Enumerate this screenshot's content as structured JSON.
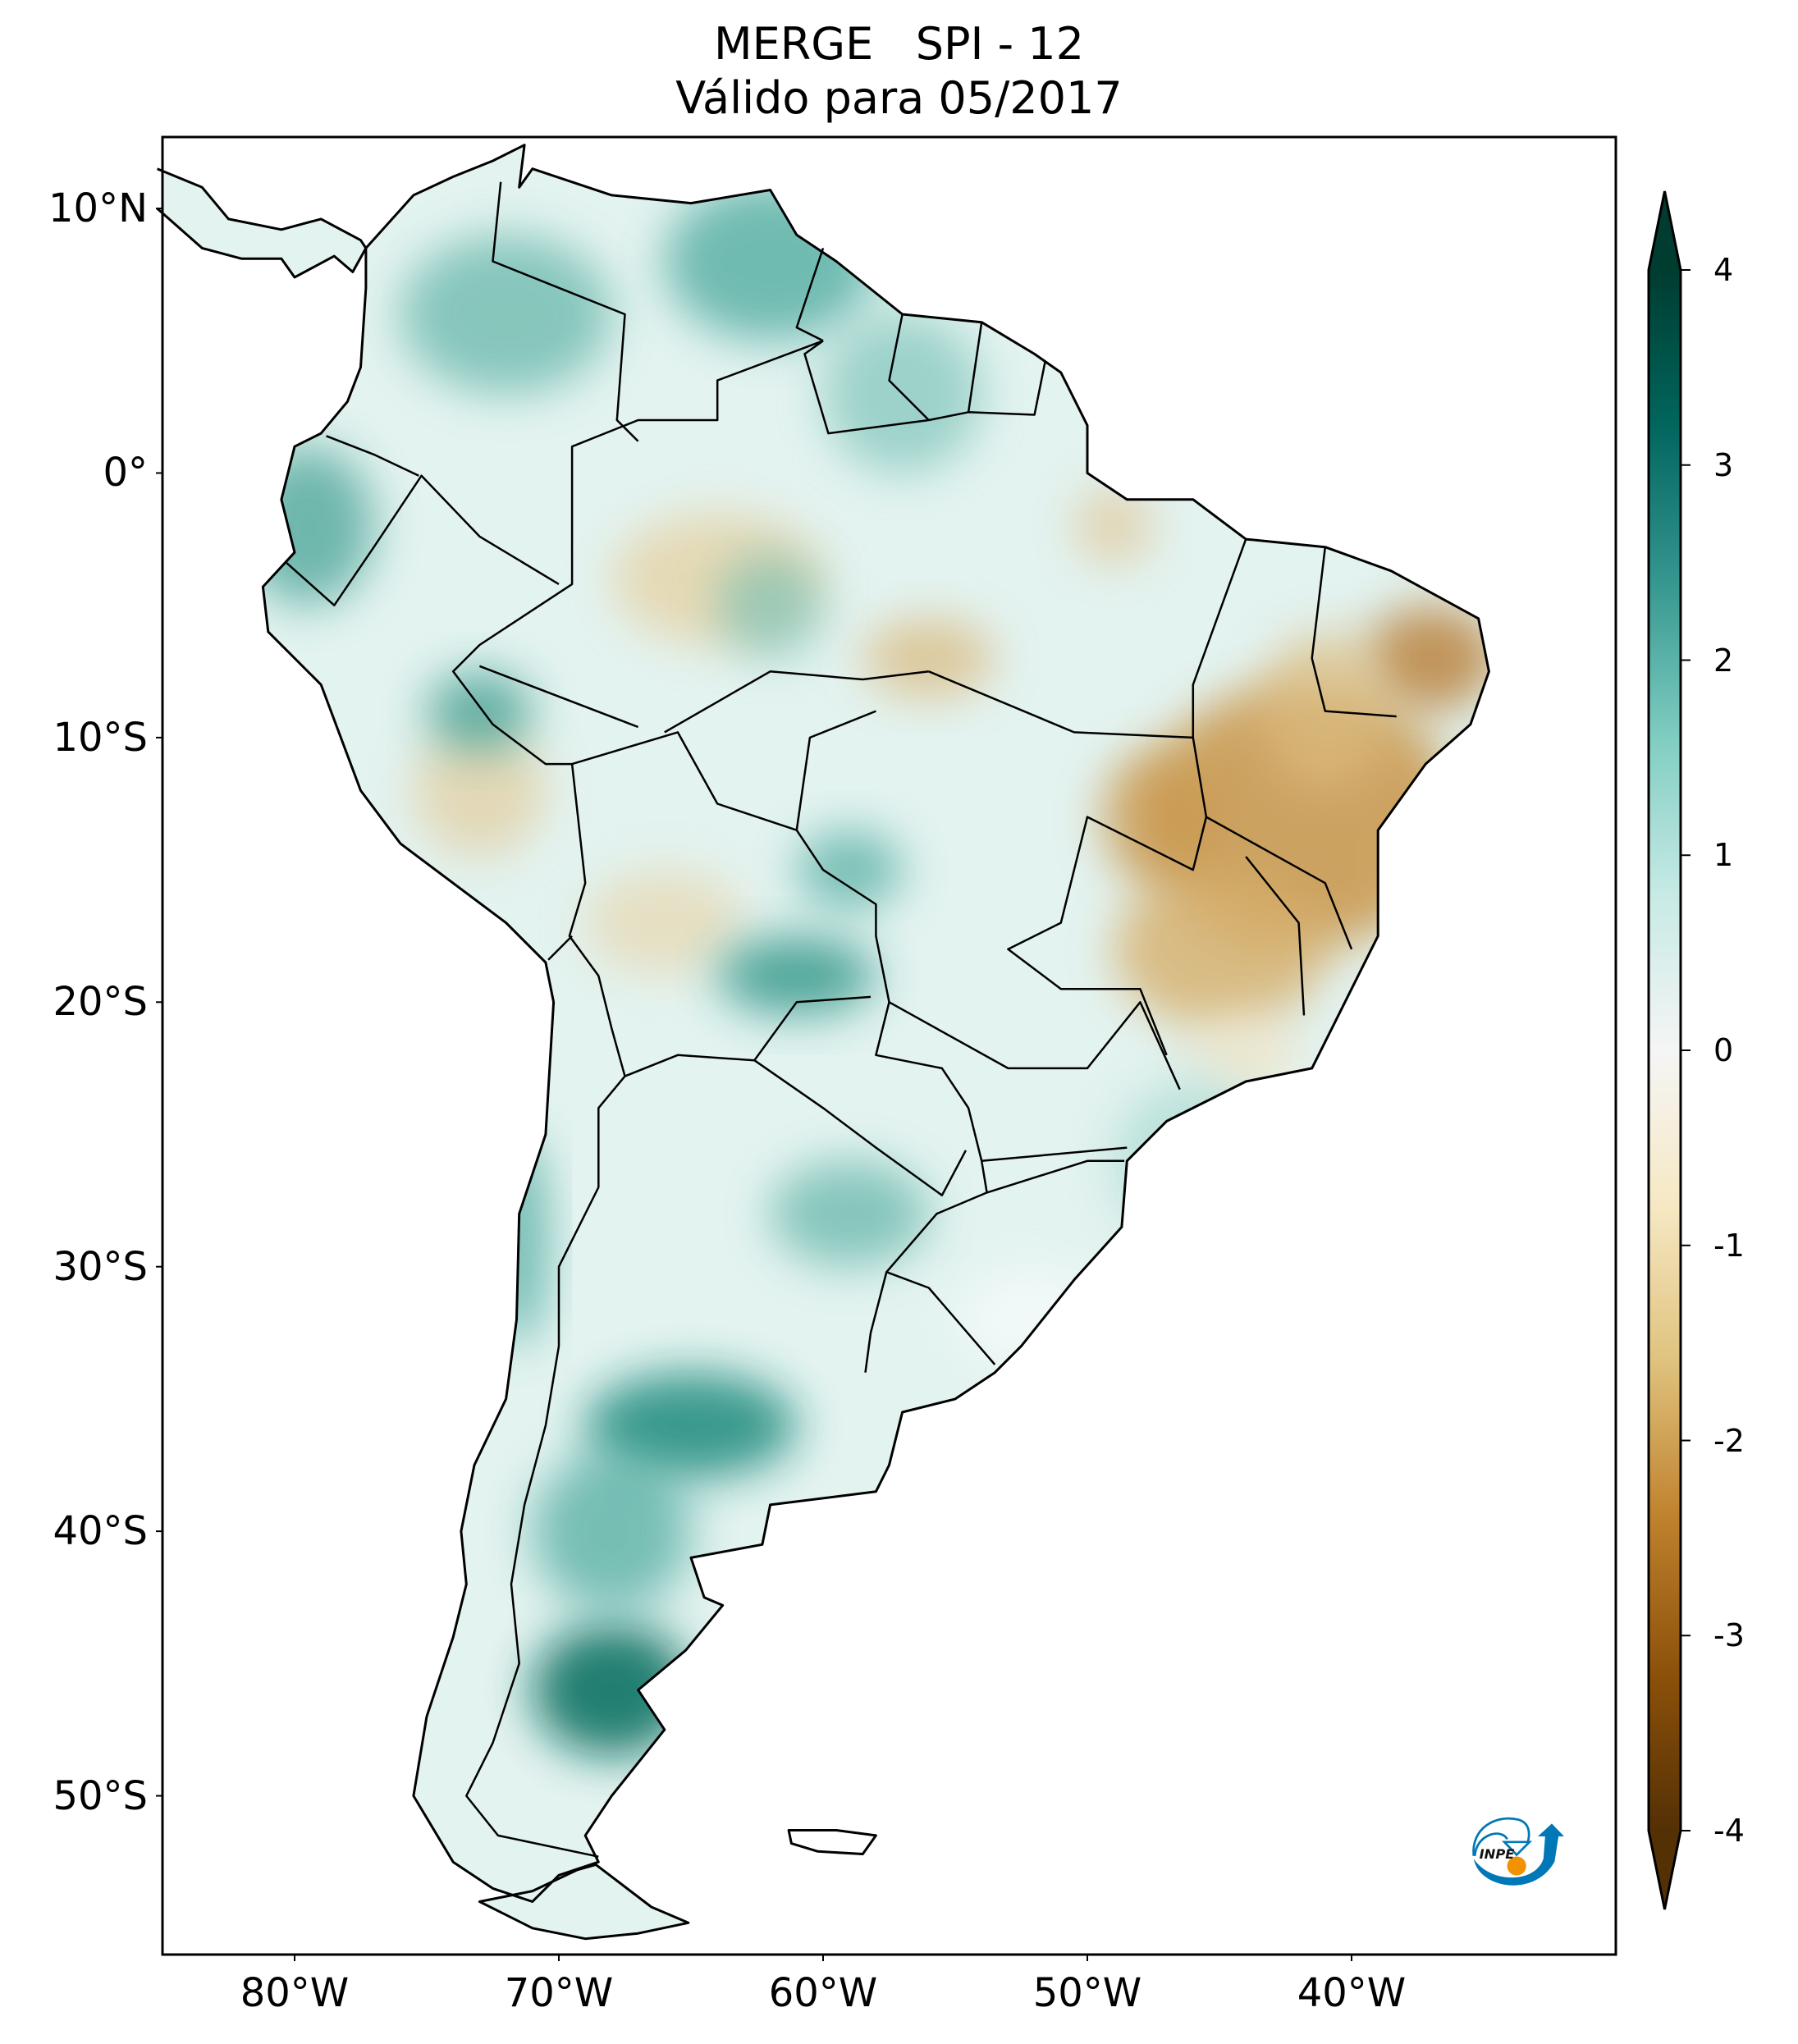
{
  "title": {
    "line1": "MERGE   SPI - 12",
    "line2": "Válido para 05/2017"
  },
  "map": {
    "region": "South America",
    "variable": "SPI - 12",
    "extent": {
      "lon": [
        -85,
        -30
      ],
      "lat": [
        -56,
        12.7
      ]
    },
    "lat_ticks": [
      {
        "value": 10,
        "label": "10°N"
      },
      {
        "value": 0,
        "label": "0°"
      },
      {
        "value": -10,
        "label": "10°S"
      },
      {
        "value": -20,
        "label": "20°S"
      },
      {
        "value": -30,
        "label": "30°S"
      },
      {
        "value": -40,
        "label": "40°S"
      },
      {
        "value": -50,
        "label": "50°S"
      }
    ],
    "lon_ticks": [
      {
        "value": -80,
        "label": "80°W"
      },
      {
        "value": -70,
        "label": "70°W"
      },
      {
        "value": -60,
        "label": "60°W"
      },
      {
        "value": -50,
        "label": "50°W"
      },
      {
        "value": -40,
        "label": "40°W"
      }
    ]
  },
  "colorbar": {
    "colormap": "BrBG",
    "range": [
      -4,
      4
    ],
    "extend": "both",
    "ticks": [
      {
        "value": 4,
        "label": "4"
      },
      {
        "value": 3,
        "label": "3"
      },
      {
        "value": 2,
        "label": "2"
      },
      {
        "value": 1,
        "label": "1"
      },
      {
        "value": 0,
        "label": "0"
      },
      {
        "value": -1,
        "label": "-1"
      },
      {
        "value": -2,
        "label": "-2"
      },
      {
        "value": -3,
        "label": "-3"
      },
      {
        "value": -4,
        "label": "-4"
      }
    ],
    "colors": [
      "#543005",
      "#8c510a",
      "#bf812d",
      "#dfc27d",
      "#f6e8c3",
      "#f5f5f5",
      "#c7eae5",
      "#80cdc1",
      "#35978f",
      "#01665e",
      "#003c30"
    ]
  },
  "logo": {
    "text": "INPE",
    "colors": {
      "blue": "#0077b6",
      "orange": "#f39200"
    }
  }
}
